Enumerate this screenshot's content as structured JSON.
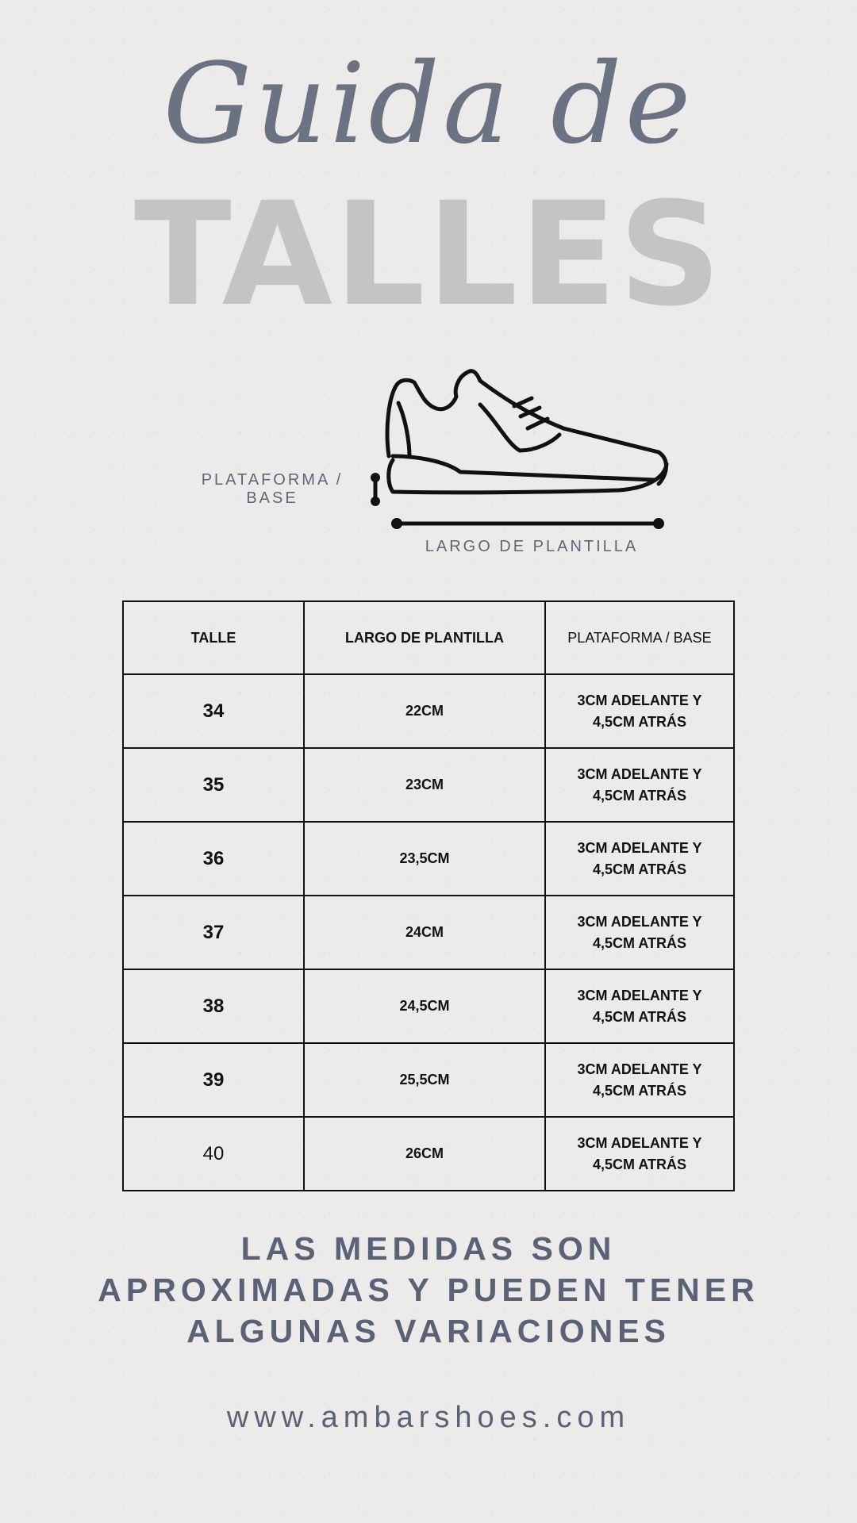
{
  "title": {
    "script": "Guida de",
    "main": "TALLES"
  },
  "diagram": {
    "platform_label_1": "PLATAFORMA /",
    "platform_label_2": "BASE",
    "length_label": "LARGO DE PLANTILLA"
  },
  "table": {
    "headers": [
      "TALLE",
      "LARGO DE PLANTILLA",
      "PLATAFORMA / BASE"
    ],
    "rows": [
      {
        "size": "34",
        "length": "22CM",
        "platform_1": "3CM ADELANTE Y",
        "platform_2": "4,5CM ATRÁS"
      },
      {
        "size": "35",
        "length": "23CM",
        "platform_1": "3CM ADELANTE Y",
        "platform_2": "4,5CM ATRÁS"
      },
      {
        "size": "36",
        "length": "23,5CM",
        "platform_1": "3CM ADELANTE Y",
        "platform_2": "4,5CM ATRÁS"
      },
      {
        "size": "37",
        "length": "24CM",
        "platform_1": "3CM ADELANTE Y",
        "platform_2": "4,5CM ATRÁS"
      },
      {
        "size": "38",
        "length": "24,5CM",
        "platform_1": "3CM ADELANTE Y",
        "platform_2": "4,5CM ATRÁS"
      },
      {
        "size": "39",
        "length": "25,5CM",
        "platform_1": "3CM ADELANTE Y",
        "platform_2": "4,5CM ATRÁS"
      },
      {
        "size": "40",
        "length": "26CM",
        "platform_1": "3CM ADELANTE Y",
        "platform_2": "4,5CM ATRÁS"
      }
    ]
  },
  "note": {
    "line1": "LAS MEDIDAS SON",
    "line2": "APROXIMADAS Y PUEDEN TENER",
    "line3": "ALGUNAS VARIACIONES"
  },
  "website": "www.ambarshoes.com",
  "colors": {
    "script": "#6b7383",
    "talles": "#c5c4c2",
    "accent_text": "#596277",
    "background": "#ecebea"
  }
}
